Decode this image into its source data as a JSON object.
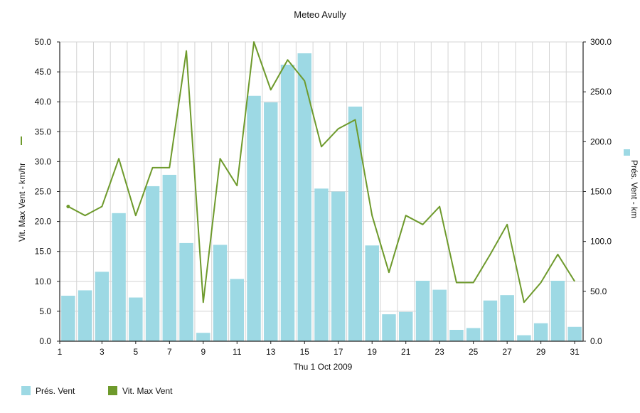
{
  "chart_data": {
    "type": "bar",
    "title": "Meteo  Avully",
    "xlabel": "Thu 1 Oct 2009",
    "ylabel_left": "Vit. Max Vent - km/hr",
    "ylabel_right": "Prés. Vent - km",
    "x": [
      1,
      2,
      3,
      4,
      5,
      6,
      7,
      8,
      9,
      10,
      11,
      12,
      13,
      14,
      15,
      16,
      17,
      18,
      19,
      20,
      21,
      22,
      23,
      24,
      25,
      26,
      27,
      28,
      29,
      30,
      31
    ],
    "x_tick_labels": [
      "1",
      "3",
      "5",
      "7",
      "9",
      "11",
      "13",
      "15",
      "17",
      "19",
      "21",
      "23",
      "25",
      "27",
      "29",
      "31"
    ],
    "ylim_left": [
      0,
      50
    ],
    "ylim_right": [
      0,
      300
    ],
    "y_ticks_left": [
      "0.0",
      "5.0",
      "10.0",
      "15.0",
      "20.0",
      "25.0",
      "30.0",
      "35.0",
      "40.0",
      "45.0",
      "50.0"
    ],
    "y_ticks_right": [
      "0.0",
      "50.0",
      "100.0",
      "150.0",
      "200.0",
      "250.0",
      "300.0"
    ],
    "grid": true,
    "legend_position": "bottom-left",
    "series": [
      {
        "name": "Prés. Vent",
        "kind": "bar",
        "axis": "right",
        "color": "#9dd9e4",
        "values": [
          45.6,
          51,
          69.6,
          128.4,
          43.8,
          155.4,
          166.8,
          98.4,
          8.4,
          96.6,
          62.4,
          246,
          239.4,
          277.2,
          288.6,
          153,
          150,
          235.2,
          96,
          27,
          29.4,
          60.6,
          51.6,
          11.4,
          13.2,
          40.8,
          46.2,
          6,
          18,
          60.6,
          14.4
        ]
      },
      {
        "name": "Vit. Max Vent",
        "kind": "line",
        "axis": "left",
        "color": "#6e9a2c",
        "values": [
          22.5,
          21,
          22.5,
          30.5,
          21,
          29,
          29,
          48.5,
          6.5,
          30.5,
          26,
          50,
          42,
          47,
          43.5,
          32.5,
          35.5,
          37,
          21,
          11.5,
          21,
          19.5,
          22.5,
          9.8,
          9.8,
          14.5,
          19.5,
          6.5,
          9.8,
          14.5,
          10
        ]
      }
    ]
  }
}
